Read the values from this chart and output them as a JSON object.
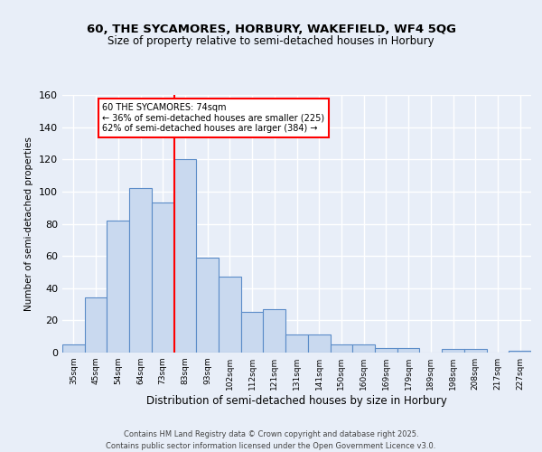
{
  "title1": "60, THE SYCAMORES, HORBURY, WAKEFIELD, WF4 5QG",
  "title2": "Size of property relative to semi-detached houses in Horbury",
  "xlabel": "Distribution of semi-detached houses by size in Horbury",
  "ylabel": "Number of semi-detached properties",
  "categories": [
    "35sqm",
    "45sqm",
    "54sqm",
    "64sqm",
    "73sqm",
    "83sqm",
    "93sqm",
    "102sqm",
    "112sqm",
    "121sqm",
    "131sqm",
    "141sqm",
    "150sqm",
    "160sqm",
    "169sqm",
    "179sqm",
    "189sqm",
    "198sqm",
    "208sqm",
    "217sqm",
    "227sqm"
  ],
  "values": [
    5,
    34,
    82,
    102,
    93,
    120,
    59,
    47,
    25,
    27,
    11,
    11,
    5,
    5,
    3,
    3,
    0,
    2,
    2,
    0,
    1
  ],
  "bar_color": "#c9d9ef",
  "bar_edge_color": "#5b8cc8",
  "vline_index": 4,
  "vline_color": "red",
  "annotation_text": "60 THE SYCAMORES: 74sqm\n← 36% of semi-detached houses are smaller (225)\n62% of semi-detached houses are larger (384) →",
  "annotation_box_color": "white",
  "annotation_box_edge": "red",
  "ylim": [
    0,
    160
  ],
  "yticks": [
    0,
    20,
    40,
    60,
    80,
    100,
    120,
    140,
    160
  ],
  "footer": "Contains HM Land Registry data © Crown copyright and database right 2025.\nContains public sector information licensed under the Open Government Licence v3.0.",
  "bg_color": "#e8eef8",
  "plot_bg_color": "#e8eef8",
  "grid_color": "white"
}
